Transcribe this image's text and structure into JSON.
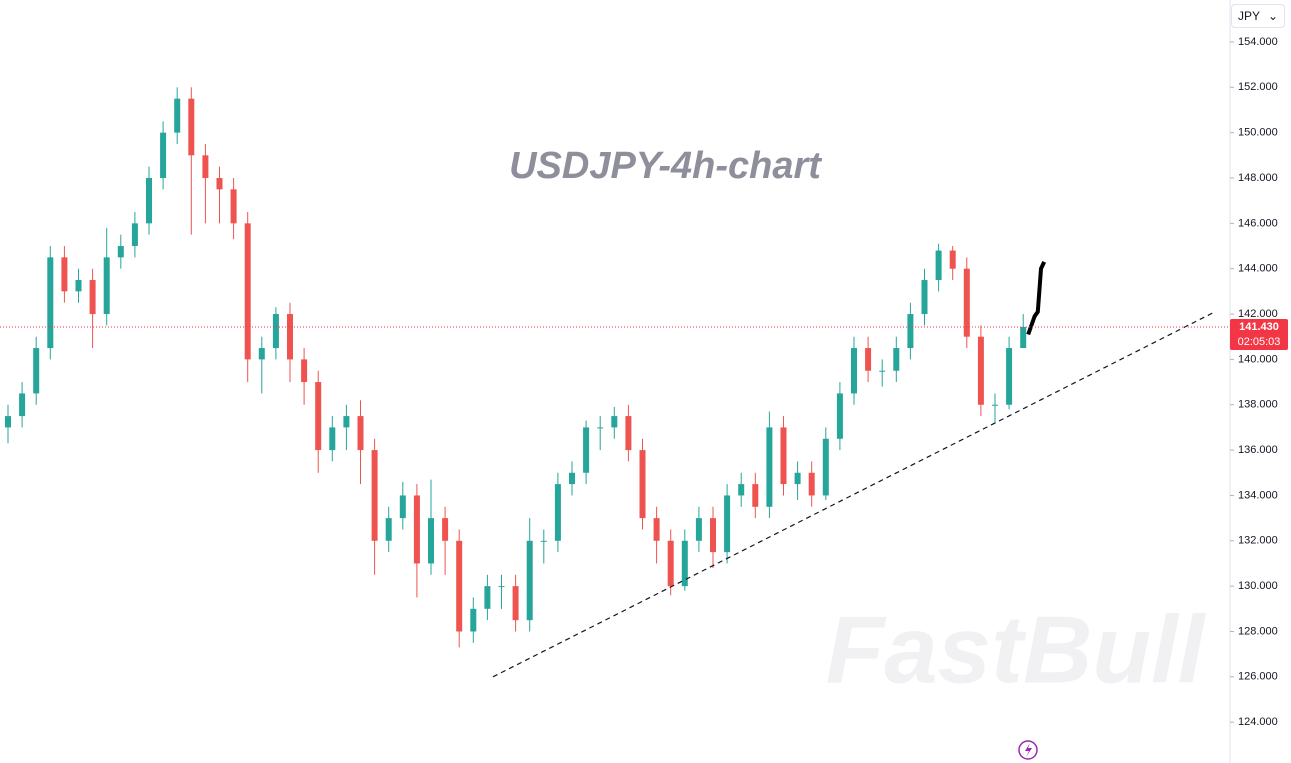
{
  "chart_data": {
    "type": "candlestick",
    "title": "USDJPY-4h-chart",
    "watermark": "FastBull",
    "currency": "JPY",
    "ylim": [
      122.2,
      155.85
    ],
    "yticks": [
      {
        "value": 124,
        "label": "124.000"
      },
      {
        "value": 126,
        "label": "126.000"
      },
      {
        "value": 128,
        "label": "128.000"
      },
      {
        "value": 130,
        "label": "130.000"
      },
      {
        "value": 132,
        "label": "132.000"
      },
      {
        "value": 134,
        "label": "134.000"
      },
      {
        "value": 136,
        "label": "136.000"
      },
      {
        "value": 138,
        "label": "138.000"
      },
      {
        "value": 140,
        "label": "140.000"
      },
      {
        "value": 142,
        "label": "142.000"
      },
      {
        "value": 144,
        "label": "144.000"
      },
      {
        "value": 146,
        "label": "146.000"
      },
      {
        "value": 148,
        "label": "148.000"
      },
      {
        "value": 150,
        "label": "150.000"
      },
      {
        "value": 152,
        "label": "152.000"
      },
      {
        "value": 154,
        "label": "154.000"
      }
    ],
    "up_color": "#26a69a",
    "down_color": "#ef5350",
    "open": [
      137,
      137.5,
      138.5,
      140.5,
      144.5,
      143,
      143.5,
      142,
      144.5,
      145,
      146,
      148,
      150,
      151.5,
      149,
      148,
      147.5,
      146,
      140,
      140.5,
      142,
      140,
      139,
      136,
      137,
      137.5,
      136,
      132,
      133,
      134,
      131,
      133,
      132,
      128,
      129,
      130,
      130,
      128.5,
      132,
      132,
      134.5,
      135,
      137,
      137,
      137.5,
      136,
      133,
      132,
      130,
      132,
      133,
      131.5,
      134,
      134.5,
      133.5,
      137,
      134.5,
      135,
      134,
      136.5,
      138.5,
      140.5,
      139.5,
      139.5,
      140.5,
      142,
      143.5,
      144.8,
      144,
      141,
      138,
      138,
      140.5
    ],
    "high": [
      138,
      139,
      141,
      145,
      145,
      144,
      144,
      145.8,
      145.5,
      146.5,
      148.5,
      150.5,
      152,
      152,
      149.5,
      148.5,
      148,
      146.5,
      141,
      142.3,
      142.5,
      140.5,
      139.5,
      137.5,
      138,
      138.2,
      136.5,
      133.5,
      134.6,
      134.5,
      134.7,
      133.5,
      132.5,
      129.5,
      130.5,
      130.5,
      130.5,
      133,
      132.5,
      135,
      135.5,
      137.3,
      137.5,
      137.9,
      138,
      136.5,
      133.5,
      132.5,
      132.5,
      133.5,
      133.5,
      134.5,
      135,
      135,
      137.7,
      137.5,
      135.5,
      135.5,
      137,
      139,
      141,
      141,
      140,
      141,
      142.5,
      144,
      145.1,
      145,
      144.5,
      141.5,
      138.5,
      141,
      142
    ],
    "low": [
      136.3,
      137,
      138,
      140,
      142.5,
      142.5,
      140.5,
      141.5,
      144,
      144.5,
      145.5,
      147.5,
      149.5,
      145.5,
      146,
      146,
      145.3,
      139,
      138.5,
      140,
      139,
      138,
      135,
      135.5,
      136,
      134.5,
      130.5,
      131.5,
      132.5,
      129.5,
      130.5,
      130.5,
      127.3,
      127.5,
      128.5,
      129,
      128,
      128,
      131,
      131.5,
      134,
      134.5,
      136,
      136.5,
      135.5,
      132.5,
      131,
      129.6,
      129.8,
      131.5,
      130.8,
      131,
      133.5,
      133,
      133,
      134,
      133.8,
      133.5,
      133.8,
      136,
      138,
      139,
      138.8,
      139,
      140,
      141.5,
      143,
      143.5,
      140.5,
      137.5,
      137.2,
      137.8,
      140.5
    ],
    "close": [
      137.5,
      138.5,
      140.5,
      144.5,
      143,
      143.5,
      142,
      144.5,
      145,
      146,
      148,
      150,
      151.5,
      149,
      148,
      147.5,
      146,
      140,
      140.5,
      142,
      140,
      139,
      136,
      137,
      137.5,
      136,
      132,
      133,
      134,
      131,
      133,
      132,
      128,
      129,
      130,
      130,
      128.5,
      132,
      132,
      134.5,
      135,
      137,
      137,
      137.5,
      136,
      133,
      132,
      130,
      132,
      133,
      131.5,
      134,
      134.5,
      133.5,
      137,
      134.5,
      135,
      134,
      136.5,
      138.5,
      140.5,
      139.5,
      139.5,
      140.5,
      142,
      143.5,
      144.8,
      144,
      141,
      138,
      138,
      140.5,
      141.43
    ],
    "trendline": [
      126.0,
      142.1
    ],
    "projection": [
      141.1,
      141.5,
      141.9,
      142.1,
      144.0,
      144.3
    ],
    "current": {
      "price": 141.43,
      "price_label": "141.430",
      "countdown": "02:05:03"
    }
  }
}
